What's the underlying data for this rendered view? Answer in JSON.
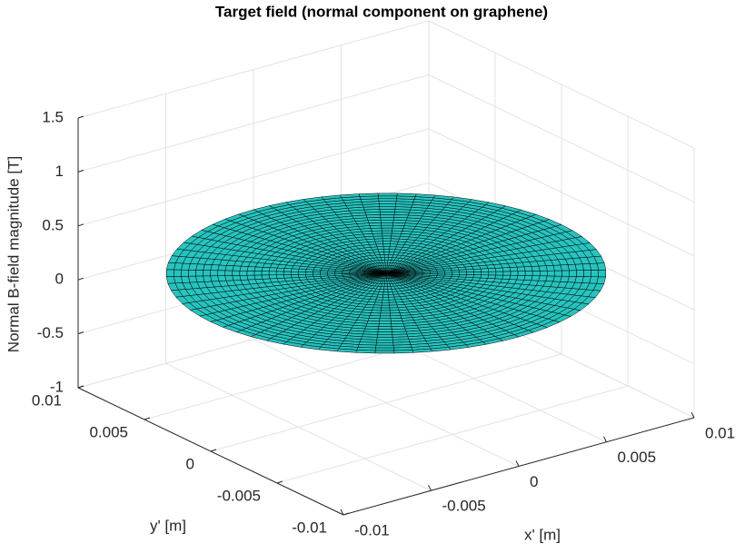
{
  "chart_data": {
    "type": "surface",
    "title": "Target field (normal component on graphene)",
    "xlabel": "x' [m]",
    "ylabel": "y' [m]",
    "zlabel": "Normal B-field magnitude [T]",
    "xlim": [
      -0.01,
      0.01
    ],
    "ylim": [
      -0.01,
      0.01
    ],
    "zlim": [
      -1,
      1.5
    ],
    "xticks": [
      -0.01,
      -0.005,
      0,
      0.005,
      0.01
    ],
    "yticks": [
      -0.01,
      -0.005,
      0,
      0.005,
      0.01
    ],
    "zticks": [
      -1,
      -0.5,
      0,
      0.5,
      1,
      1.5
    ],
    "grid": true,
    "surface": {
      "shape": "disk",
      "radius": 0.01,
      "z": 0.2,
      "color": "#27c4bf",
      "edgecolor": "#000000"
    }
  }
}
